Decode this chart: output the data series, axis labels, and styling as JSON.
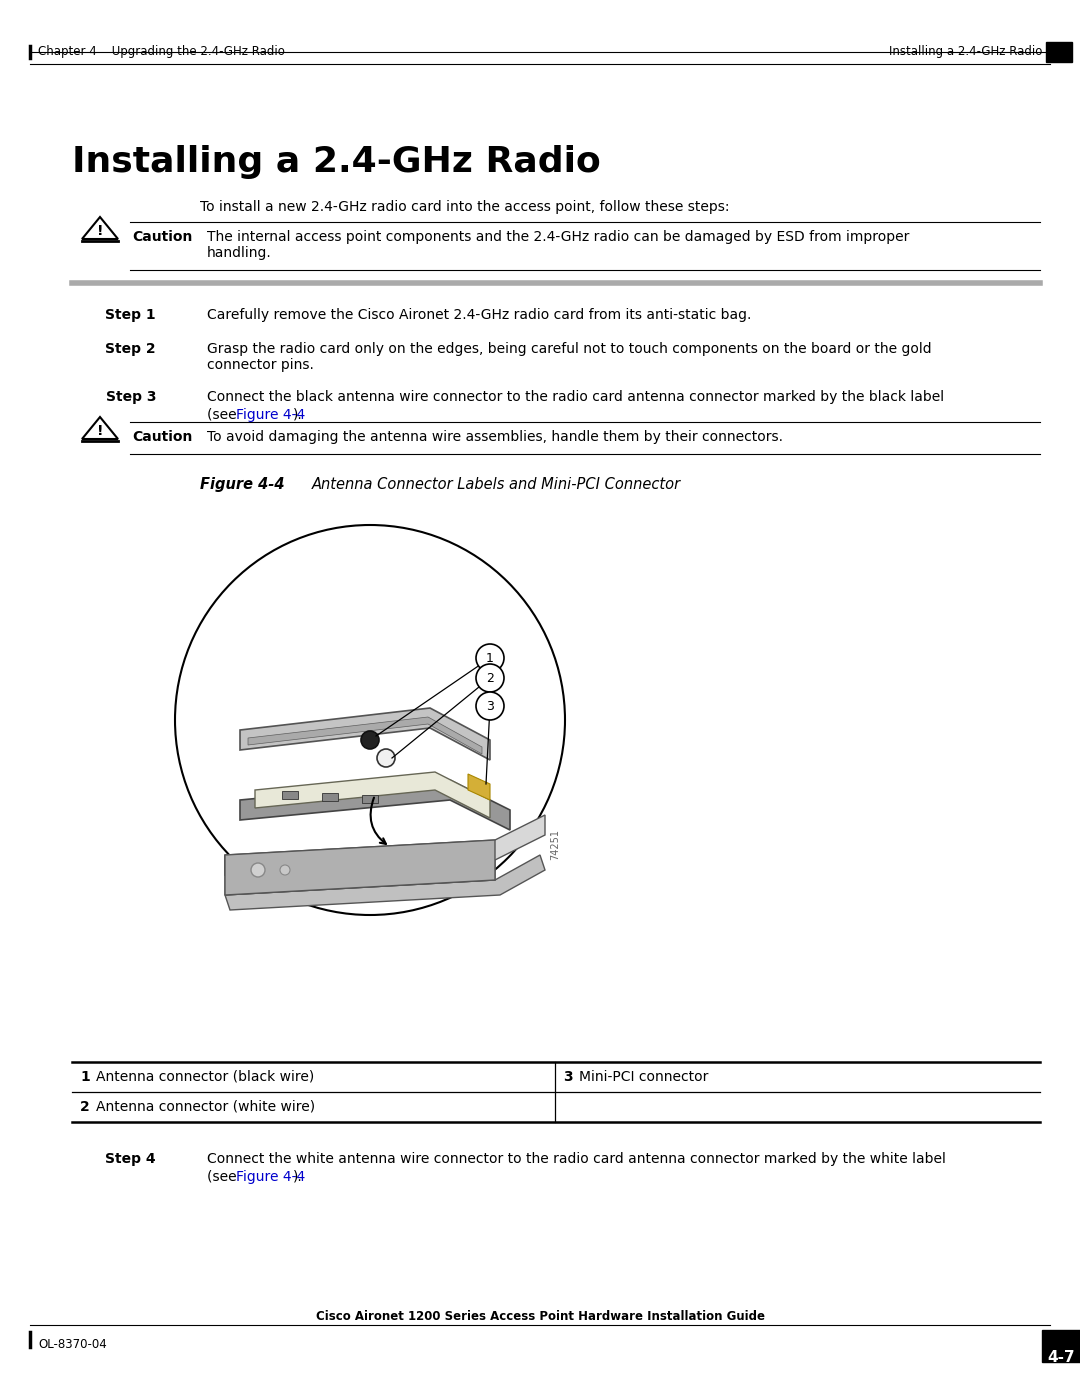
{
  "page_title": "Installing a 2.4-GHz Radio",
  "header_left": "Chapter 4    Upgrading the 2.4-GHz Radio",
  "header_right": "Installing a 2.4-GHz Radio",
  "footer_left": "OL-8370-04",
  "footer_center": "Cisco Aironet 1200 Series Access Point Hardware Installation Guide",
  "footer_page": "4-7",
  "intro_text": "To install a new 2.4-GHz radio card into the access point, follow these steps:",
  "caution1_text": "The internal access point components and the 2.4-GHz radio can be damaged by ESD from improper\nhandling.",
  "step1_label": "Step 1",
  "step1_text": "Carefully remove the Cisco Aironet 2.4-GHz radio card from its anti-static bag.",
  "step2_label": "Step 2",
  "step2_text": "Grasp the radio card only on the edges, being careful not to touch components on the board or the gold\nconnector pins.",
  "step3_label": "Step 3",
  "step3_line1": "Connect the black antenna wire connector to the radio card antenna connector marked by the black label",
  "step3_line2_pre": "(see ",
  "step3_line2_link": "Figure 4-4",
  "step3_line2_post": ").",
  "caution2_text": "To avoid damaging the antenna wire assemblies, handle them by their connectors.",
  "figure_label": "Figure 4-4",
  "figure_title": "Antenna Connector Labels and Mini-PCI Connector",
  "figure_number": "74251",
  "callout1": "1",
  "callout2": "2",
  "callout3": "3",
  "table_row1_col1_num": "1",
  "table_row1_col1_text": "Antenna connector (black wire)",
  "table_row1_col2_num": "3",
  "table_row1_col2_text": "Mini-PCI connector",
  "table_row2_col1_num": "2",
  "table_row2_col1_text": "Antenna connector (white wire)",
  "step4_label": "Step 4",
  "step4_line1": "Connect the white antenna wire connector to the radio card antenna connector marked by the white label",
  "step4_line2_pre": "(see ",
  "step4_line2_link": "Figure 4-4",
  "step4_line2_post": ").",
  "link_color": "#0000CC",
  "bg_color": "#FFFFFF",
  "text_color": "#000000"
}
